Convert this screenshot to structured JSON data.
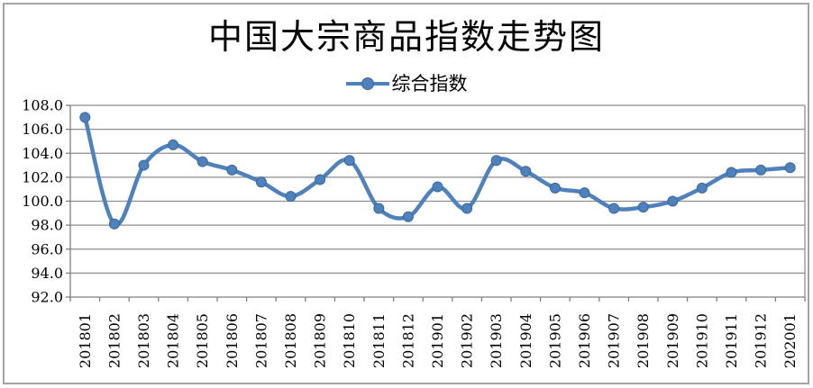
{
  "chart_data": {
    "type": "line",
    "title": "中国大宗商品指数走势图",
    "categories": [
      "201801",
      "201802",
      "201803",
      "201804",
      "201805",
      "201806",
      "201807",
      "201808",
      "201809",
      "201810",
      "201811",
      "201812",
      "201901",
      "201902",
      "201903",
      "201904",
      "201905",
      "201906",
      "201907",
      "201908",
      "201909",
      "201910",
      "201911",
      "201912",
      "202001"
    ],
    "series": [
      {
        "name": "综合指数",
        "values": [
          107.0,
          98.1,
          103.0,
          104.7,
          103.3,
          102.6,
          101.6,
          100.4,
          101.8,
          103.4,
          99.4,
          98.7,
          101.2,
          99.4,
          103.4,
          102.5,
          101.1,
          100.7,
          99.4,
          99.5,
          100.0,
          101.1,
          102.4,
          102.6,
          102.8
        ]
      }
    ],
    "xlabel": "",
    "ylabel": "",
    "ylim": [
      92.0,
      108.0
    ],
    "ytick_step": 2.0,
    "ytick_labels": [
      "92.0",
      "94.0",
      "96.0",
      "98.0",
      "100.0",
      "102.0",
      "104.0",
      "106.0",
      "108.0"
    ],
    "grid": true,
    "smoothed_line": true,
    "legend_position": "top-center",
    "colors": {
      "line": "#4f81bd",
      "marker_fill": "#4f81bd",
      "marker_edge": "#3a689b",
      "gridline": "#8e8e8e",
      "axis": "#7f7f7f",
      "text": "#000000",
      "frame_border": "#a3a3a3",
      "background": "#ffffff"
    }
  }
}
